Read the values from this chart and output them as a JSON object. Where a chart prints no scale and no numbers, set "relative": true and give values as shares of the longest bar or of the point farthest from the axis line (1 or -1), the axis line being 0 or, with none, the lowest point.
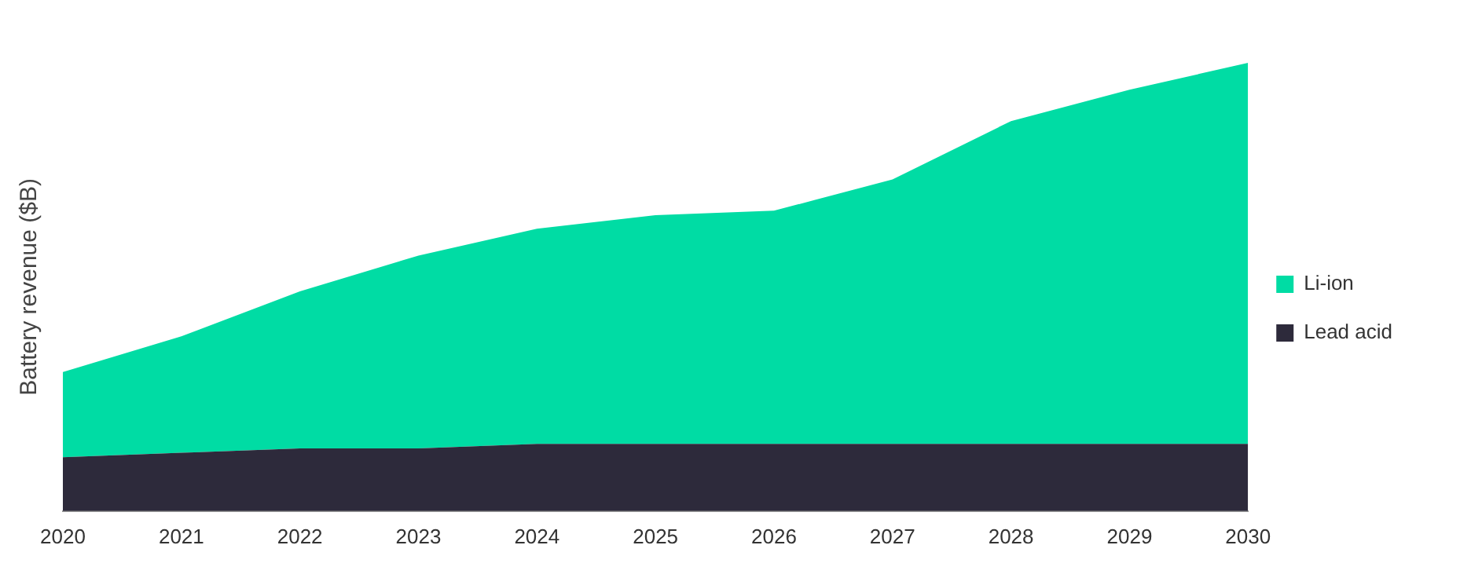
{
  "chart_data": {
    "type": "area",
    "stacked": true,
    "relative": true,
    "ylabel": "Battery revenue ($B)",
    "legend": "right",
    "grid": false,
    "categories": [
      "2020",
      "2021",
      "2022",
      "2023",
      "2024",
      "2025",
      "2026",
      "2027",
      "2028",
      "2029",
      "2030"
    ],
    "series": [
      {
        "name": "Lead acid",
        "color": "#2d2a3b",
        "values": [
          0.12,
          0.13,
          0.14,
          0.14,
          0.15,
          0.15,
          0.15,
          0.15,
          0.15,
          0.15,
          0.15
        ]
      },
      {
        "name": "Li-ion",
        "color": "#00dca4",
        "values": [
          0.19,
          0.26,
          0.35,
          0.43,
          0.48,
          0.51,
          0.52,
          0.59,
          0.72,
          0.79,
          0.85
        ]
      }
    ]
  }
}
